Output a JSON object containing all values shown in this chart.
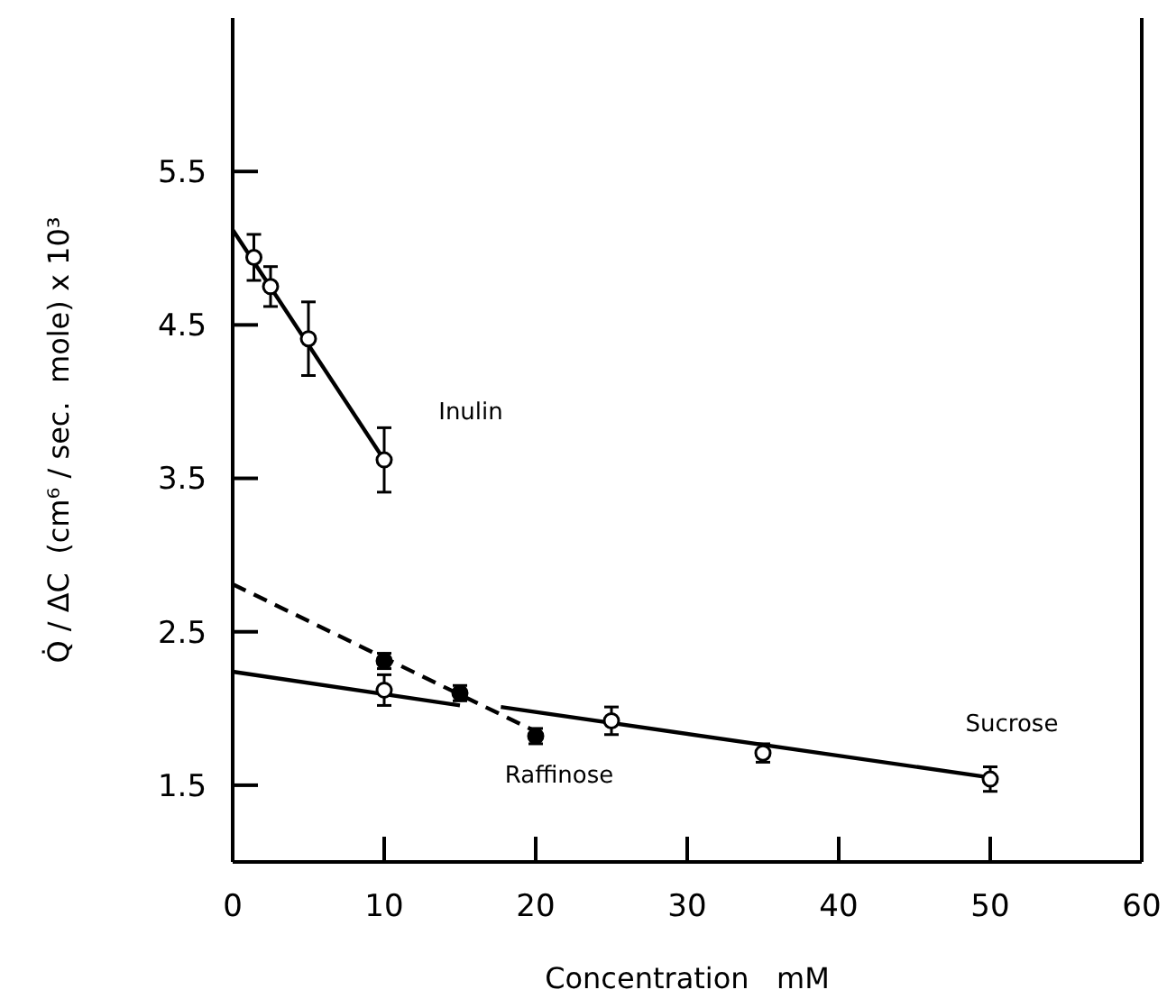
{
  "chart_data": {
    "type": "scatter",
    "xlabel": "Concentration   mM",
    "ylabel": "Q̇ / ΔC  (cm⁶ / sec.  mole) x 10³",
    "xlim": [
      0,
      60
    ],
    "xticks": [
      0,
      10,
      20,
      30,
      40,
      50,
      60
    ],
    "ylim": [
      1,
      6.5
    ],
    "yticks": [
      1.5,
      2.5,
      3.5,
      4.5,
      5.5
    ],
    "grid": false,
    "marker": "circle",
    "series": [
      {
        "type": "line",
        "color": "#000000",
        "x": [
          0,
          10
        ],
        "values": [
          5.12,
          3.62
        ],
        "line_style": "solid",
        "marker": "none"
      },
      {
        "type": "line",
        "color": "#000000",
        "x": [
          0,
          19.8
        ],
        "values": [
          2.81,
          1.86
        ],
        "line_style": "dashed",
        "marker": "none"
      },
      {
        "type": "line",
        "color": "#000000",
        "x": [
          0,
          15
        ],
        "values": [
          2.24,
          2.02
        ],
        "line_style": "solid",
        "marker": "none"
      },
      {
        "type": "line",
        "color": "#000000",
        "x": [
          17.7,
          50
        ],
        "values": [
          2.01,
          1.55
        ],
        "line_style": "solid",
        "marker": "none"
      },
      {
        "name": "Inulin",
        "color": "#ffffff",
        "x": [
          1.4,
          2.5,
          5,
          10
        ],
        "values": [
          4.94,
          4.75,
          4.41,
          3.62
        ],
        "errors": [
          0.15,
          0.13,
          0.24,
          0.21
        ]
      },
      {
        "name": "Raffinose",
        "color": "#000000",
        "x": [
          10,
          15,
          20
        ],
        "values": [
          2.31,
          2.1,
          1.82
        ],
        "errors": [
          0.05,
          0.05,
          0.05
        ]
      },
      {
        "name": "Sucrose",
        "color": "#ffffff",
        "x": [
          10,
          25,
          35,
          50
        ],
        "values": [
          2.12,
          1.92,
          1.71,
          1.54
        ],
        "errors": [
          0.1,
          0.09,
          0.06,
          0.08
        ]
      }
    ]
  }
}
